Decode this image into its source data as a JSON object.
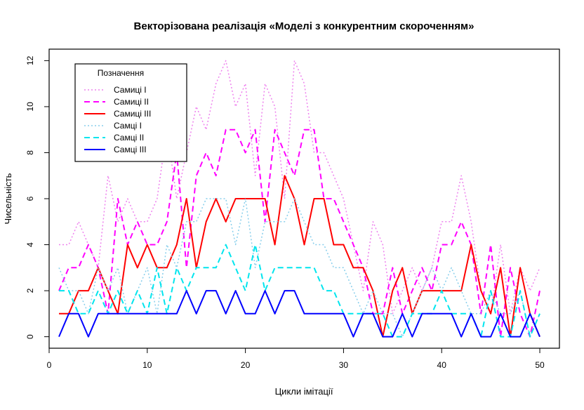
{
  "chart_data": {
    "type": "line",
    "title": "Векторізована реалізація «Моделі з конкурентним скороченням»",
    "xlabel": "Цикли імітації",
    "ylabel": "Чисельність",
    "xlim": [
      0,
      52
    ],
    "ylim": [
      -0.5,
      12.5
    ],
    "xticks": [
      0,
      10,
      20,
      30,
      40,
      50
    ],
    "yticks": [
      0,
      2,
      4,
      6,
      8,
      10,
      12
    ],
    "grid": false,
    "legend": {
      "title": "Позначення",
      "position": "top-left"
    },
    "x": [
      1,
      2,
      3,
      4,
      5,
      6,
      7,
      8,
      9,
      10,
      11,
      12,
      13,
      14,
      15,
      16,
      17,
      18,
      19,
      20,
      21,
      22,
      23,
      24,
      25,
      26,
      27,
      28,
      29,
      30,
      31,
      32,
      33,
      34,
      35,
      36,
      37,
      38,
      39,
      40,
      41,
      42,
      43,
      44,
      45,
      46,
      47,
      48,
      49,
      50
    ],
    "series": [
      {
        "name": "Самиці I",
        "color": "#ee82ee",
        "dash": "dotted",
        "width": 1.5,
        "values": [
          4,
          4,
          5,
          4,
          3,
          7,
          5,
          6,
          5,
          5,
          6,
          9,
          6,
          8,
          10,
          9,
          11,
          12,
          10,
          11,
          7,
          11,
          10,
          6,
          12,
          11,
          8,
          8,
          7,
          6,
          4,
          2,
          5,
          4,
          1,
          2,
          3,
          2,
          3,
          5,
          5,
          7,
          5,
          2,
          1,
          4,
          1,
          3,
          2,
          3
        ]
      },
      {
        "name": "Самиці II",
        "color": "#ff00ff",
        "dash": "dashed",
        "width": 2,
        "values": [
          2,
          3,
          3,
          4,
          3,
          1,
          6,
          4,
          5,
          4,
          4,
          5,
          8,
          3,
          7,
          8,
          7,
          9,
          9,
          8,
          9,
          5,
          9,
          8,
          7,
          9,
          9,
          6,
          6,
          5,
          4,
          3,
          1,
          1,
          3,
          1,
          2,
          3,
          2,
          4,
          4,
          5,
          4,
          1,
          4,
          0,
          3,
          1,
          0,
          2
        ]
      },
      {
        "name": "Самиці III",
        "color": "#ff0000",
        "dash": "solid",
        "width": 2,
        "values": [
          1,
          1,
          2,
          2,
          3,
          2,
          1,
          4,
          3,
          4,
          3,
          3,
          4,
          6,
          3,
          5,
          6,
          5,
          6,
          6,
          6,
          6,
          4,
          7,
          6,
          4,
          6,
          6,
          4,
          4,
          3,
          3,
          2,
          0,
          2,
          3,
          1,
          2,
          2,
          2,
          2,
          2,
          4,
          2,
          1,
          3,
          0,
          3,
          1,
          0
        ]
      },
      {
        "name": "Самці I",
        "color": "#87ceeb",
        "dash": "dotted",
        "width": 1.5,
        "values": [
          3,
          2,
          2,
          1,
          3,
          2,
          3,
          1,
          2,
          3,
          1,
          4,
          3,
          5,
          5,
          6,
          6,
          6,
          4,
          6,
          3,
          5,
          5,
          5,
          6,
          5,
          4,
          4,
          3,
          3,
          2,
          1,
          2,
          1,
          1,
          0,
          1,
          2,
          3,
          2,
          3,
          2,
          1,
          1,
          2,
          1,
          1,
          2,
          0,
          1
        ]
      },
      {
        "name": "Самці II",
        "color": "#00e5ee",
        "dash": "dashed",
        "width": 2,
        "values": [
          2,
          2,
          1,
          1,
          2,
          1,
          2,
          1,
          2,
          1,
          3,
          1,
          3,
          2,
          3,
          3,
          3,
          4,
          3,
          2,
          4,
          2,
          3,
          3,
          3,
          3,
          3,
          2,
          2,
          1,
          1,
          1,
          1,
          1,
          0,
          0,
          1,
          1,
          1,
          2,
          1,
          1,
          1,
          0,
          2,
          0,
          0,
          2,
          0,
          1
        ]
      },
      {
        "name": "Самці III",
        "color": "#0000ff",
        "dash": "solid",
        "width": 2,
        "values": [
          0,
          1,
          1,
          0,
          1,
          1,
          1,
          1,
          1,
          1,
          1,
          1,
          1,
          2,
          1,
          2,
          2,
          1,
          2,
          1,
          1,
          2,
          1,
          2,
          2,
          1,
          1,
          1,
          1,
          1,
          0,
          1,
          1,
          0,
          0,
          1,
          0,
          1,
          1,
          1,
          1,
          0,
          1,
          0,
          0,
          1,
          0,
          0,
          1,
          0
        ]
      }
    ]
  }
}
